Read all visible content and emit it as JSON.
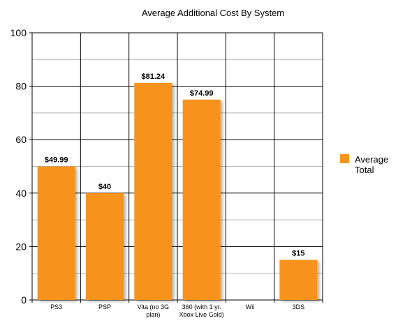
{
  "chart_data": {
    "type": "bar",
    "title": "Average Additional Cost By System",
    "xlabel": "",
    "ylabel": "",
    "categories": [
      [
        "PS3"
      ],
      [
        "PSP"
      ],
      [
        "Vita (no 3G",
        "plan)"
      ],
      [
        "360 (with 1 yr.",
        "Xbox Live Gold)"
      ],
      [
        "Wii"
      ],
      [
        "3DS"
      ]
    ],
    "series": [
      {
        "name": "Average Total",
        "values": [
          49.99,
          40,
          81.24,
          74.99,
          null,
          15
        ],
        "labels": [
          "$49.99",
          "$40",
          "$81.24",
          "$74.99",
          "",
          "$15"
        ],
        "color": "#f7931e"
      }
    ],
    "ylim": [
      0,
      100
    ],
    "yticks": [
      0,
      20,
      40,
      60,
      80,
      100
    ],
    "minor_grid_step": 10,
    "grid": true,
    "legend": {
      "position": "right",
      "lines": [
        "Average",
        "Total"
      ]
    }
  }
}
